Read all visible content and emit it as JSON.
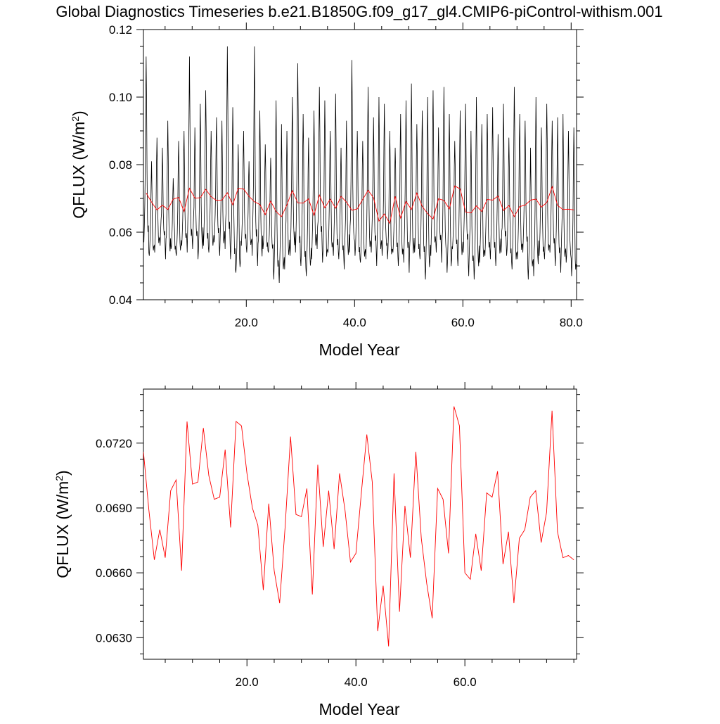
{
  "title": "Global Diagnostics Timeseries b.e21.B1850G.f09_g17_gl4.CMIP6-piControl-withism.001",
  "colors": {
    "monthly": "#000000",
    "annual": "#ff0000"
  },
  "chart_data": [
    {
      "type": "line",
      "xlabel": "Model Year",
      "ylabel": "QFLUX (W/m2)",
      "xlim": [
        1.0,
        81.0
      ],
      "ylim": [
        0.04,
        0.12
      ],
      "x_ticks": [
        {
          "value": 20,
          "label": "20.0"
        },
        {
          "value": 40,
          "label": "40.0"
        },
        {
          "value": 60,
          "label": "60.0"
        },
        {
          "value": 80,
          "label": "80.0"
        }
      ],
      "y_ticks": [
        {
          "value": 0.04,
          "label": "0.04"
        },
        {
          "value": 0.06,
          "label": "0.06"
        },
        {
          "value": 0.08,
          "label": "0.08"
        },
        {
          "value": 0.1,
          "label": "0.10"
        },
        {
          "value": 0.12,
          "label": "0.12"
        }
      ],
      "series": [
        {
          "color": "#000000",
          "monthly_cycle": [
            0.057,
            0.054,
            0.058,
            0.062,
            0.069,
            0.082,
            0.092,
            0.082,
            0.067,
            0.06,
            0.057,
            0.058
          ],
          "annual_peaks": [
            0.112,
            0.081,
            0.088,
            0.085,
            0.093,
            0.076,
            0.087,
            0.09,
            0.112,
            0.091,
            0.098,
            0.102,
            0.09,
            0.094,
            0.093,
            0.115,
            0.097,
            0.086,
            0.09,
            0.081,
            0.115,
            0.096,
            0.086,
            0.082,
            0.099,
            0.092,
            0.09,
            0.1,
            0.11,
            0.095,
            0.088,
            0.096,
            0.103,
            0.099,
            0.09,
            0.101,
            0.085,
            0.093,
            0.111,
            0.09,
            0.087,
            0.103,
            0.094,
            0.1,
            0.098,
            0.09,
            0.085,
            0.095,
            0.099,
            0.104,
            0.092,
            0.096,
            0.1,
            0.102,
            0.091,
            0.103,
            0.095,
            0.087,
            0.096,
            0.098,
            0.09,
            0.1,
            0.092,
            0.095,
            0.097,
            0.089,
            0.098,
            0.088,
            0.103,
            0.095,
            0.093,
            0.085,
            0.1,
            0.091,
            0.098,
            0.093,
            0.094,
            0.095,
            0.09,
            0.091
          ],
          "annual_troughs": [
            0.057,
            0.053,
            0.054,
            0.056,
            0.052,
            0.055,
            0.053,
            0.056,
            0.054,
            0.055,
            0.052,
            0.056,
            0.054,
            0.057,
            0.053,
            0.055,
            0.052,
            0.048,
            0.056,
            0.054,
            0.053,
            0.05,
            0.055,
            0.054,
            0.046,
            0.045,
            0.049,
            0.053,
            0.054,
            0.05,
            0.047,
            0.052,
            0.055,
            0.051,
            0.054,
            0.053,
            0.052,
            0.049,
            0.054,
            0.053,
            0.051,
            0.052,
            0.054,
            0.05,
            0.053,
            0.052,
            0.054,
            0.05,
            0.051,
            0.048,
            0.054,
            0.052,
            0.046,
            0.053,
            0.054,
            0.051,
            0.048,
            0.055,
            0.05,
            0.054,
            0.047,
            0.046,
            0.051,
            0.053,
            0.052,
            0.05,
            0.054,
            0.053,
            0.049,
            0.052,
            0.054,
            0.046,
            0.047,
            0.053,
            0.052,
            0.054,
            0.05,
            0.048,
            0.051,
            0.047
          ]
        },
        {
          "color": "#ff0000",
          "y": "annual"
        }
      ]
    },
    {
      "type": "line",
      "xlabel": "Model Year",
      "ylabel": "QFLUX (W/m2)",
      "xlim": [
        1.0,
        80.5
      ],
      "ylim": [
        0.062,
        0.0745
      ],
      "x_ticks": [
        {
          "value": 20,
          "label": "20.0"
        },
        {
          "value": 40,
          "label": "40.0"
        },
        {
          "value": 60,
          "label": "60.0"
        }
      ],
      "y_ticks": [
        {
          "value": 0.063,
          "label": "0.0630"
        },
        {
          "value": 0.066,
          "label": "0.0660"
        },
        {
          "value": 0.069,
          "label": "0.0690"
        },
        {
          "value": 0.072,
          "label": "0.0720"
        }
      ],
      "series": [
        {
          "color": "#ff0000",
          "x": [
            1,
            2,
            3,
            4,
            5,
            6,
            7,
            8,
            9,
            10,
            11,
            12,
            13,
            14,
            15,
            16,
            17,
            18,
            19,
            20,
            21,
            22,
            23,
            24,
            25,
            26,
            27,
            28,
            29,
            30,
            31,
            32,
            33,
            34,
            35,
            36,
            37,
            38,
            39,
            40,
            41,
            42,
            43,
            44,
            45,
            46,
            47,
            48,
            49,
            50,
            51,
            52,
            53,
            54,
            55,
            56,
            57,
            58,
            59,
            60,
            61,
            62,
            63,
            64,
            65,
            66,
            67,
            68,
            69,
            70,
            71,
            72,
            73,
            74,
            75,
            76,
            77,
            78,
            79,
            80
          ],
          "y": [
            0.0716,
            0.0689,
            0.0666,
            0.068,
            0.0667,
            0.0698,
            0.0703,
            0.0661,
            0.073,
            0.0701,
            0.0702,
            0.0727,
            0.0705,
            0.0694,
            0.0695,
            0.0717,
            0.0681,
            0.073,
            0.0728,
            0.0706,
            0.069,
            0.0682,
            0.0652,
            0.0692,
            0.0661,
            0.0646,
            0.0681,
            0.0723,
            0.0687,
            0.0686,
            0.0699,
            0.065,
            0.071,
            0.0672,
            0.0698,
            0.0671,
            0.0706,
            0.0689,
            0.0665,
            0.0669,
            0.0697,
            0.0724,
            0.0702,
            0.0633,
            0.0654,
            0.0626,
            0.0706,
            0.0642,
            0.0691,
            0.0667,
            0.0716,
            0.0676,
            0.0655,
            0.0639,
            0.0699,
            0.0694,
            0.0669,
            0.0737,
            0.0728,
            0.066,
            0.0657,
            0.0678,
            0.0661,
            0.0697,
            0.0695,
            0.0707,
            0.0664,
            0.0679,
            0.0646,
            0.0676,
            0.068,
            0.0695,
            0.0698,
            0.0674,
            0.0688,
            0.0735,
            0.0679,
            0.0667,
            0.0668,
            0.0666
          ]
        }
      ]
    }
  ]
}
